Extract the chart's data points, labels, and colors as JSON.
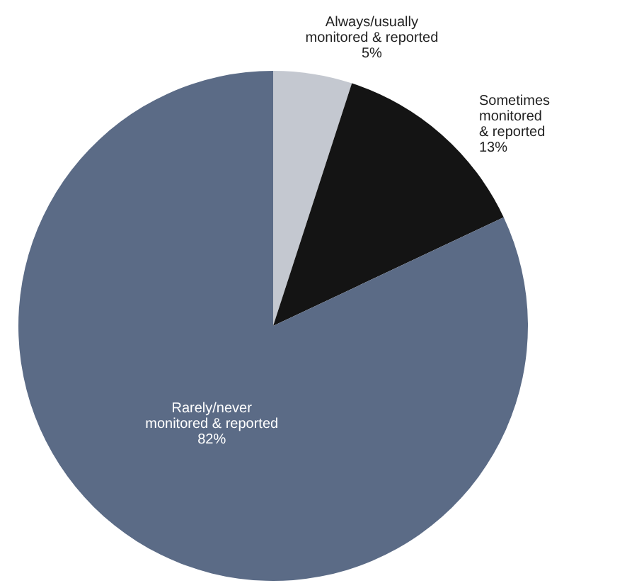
{
  "chart_data": {
    "type": "pie",
    "categories": [
      "Always/usually monitored & reported",
      "Sometimes monitored & reported",
      "Rarely/never monitored & reported"
    ],
    "values": [
      5,
      13,
      82
    ],
    "value_labels": [
      "5%",
      "13%",
      "82%"
    ],
    "colors": [
      "#c4c8d0",
      "#141414",
      "#5b6b86"
    ]
  }
}
